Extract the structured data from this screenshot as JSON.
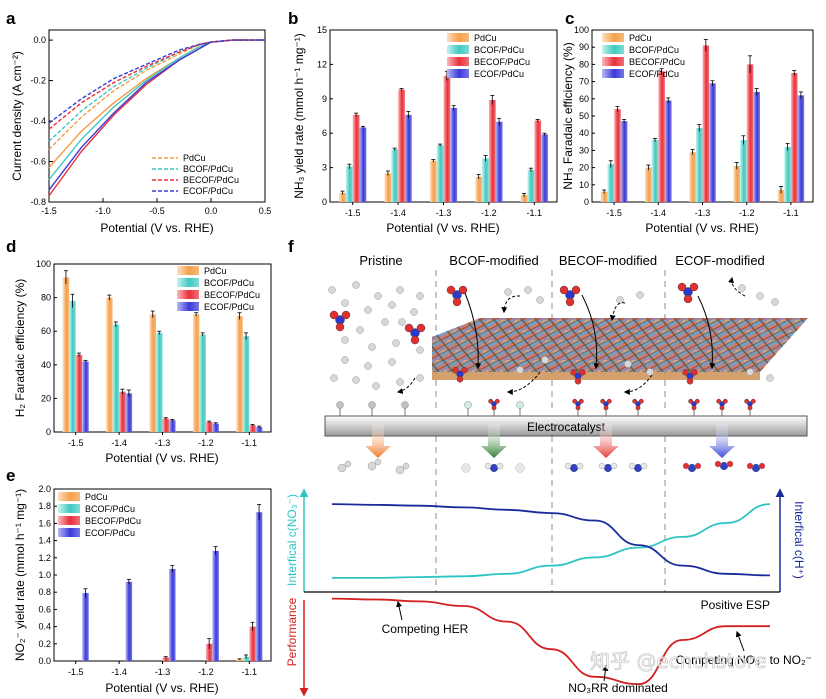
{
  "panels": {
    "a": {
      "letter": "a",
      "xlabel": "Potential (V vs. RHE)",
      "ylabel": "Current density (A cm⁻²)",
      "xticks": [
        "-1.5",
        "-1.0",
        "-0.5",
        "0.0",
        "0.5"
      ],
      "yticks": [
        "0.0",
        "-0.2",
        "-0.4",
        "-0.6",
        "-0.8"
      ],
      "legend": [
        "PdCu",
        "BCOF/PdCu",
        "BECOF/PdCu",
        "ECOF/PdCu"
      ]
    },
    "b": {
      "letter": "b",
      "xlabel": "Potential (V vs. RHE)",
      "ylabel": "NH₃ yield rate (mmol h⁻¹ mg⁻¹)",
      "yticks": [
        "0",
        "3",
        "6",
        "9",
        "12",
        "15"
      ]
    },
    "c": {
      "letter": "c",
      "xlabel": "Potential (V vs. RHE)",
      "ylabel": "NH₃ Faradaic efficiency (%)",
      "yticks": [
        "0",
        "10",
        "20",
        "30",
        "40",
        "50",
        "60",
        "70",
        "80",
        "90",
        "100"
      ]
    },
    "d": {
      "letter": "d",
      "xlabel": "Potential (V vs. RHE)",
      "ylabel": "H₂ Faradaic efficiency (%)",
      "yticks": [
        "0",
        "20",
        "40",
        "60",
        "80",
        "100"
      ]
    },
    "e": {
      "letter": "e",
      "xlabel": "Potential (V vs. RHE)",
      "ylabel": "NO₂⁻ yield rate (mmol h⁻¹ mg⁻¹)",
      "yticks": [
        "0.0",
        "0.2",
        "0.4",
        "0.6",
        "0.8",
        "1.0",
        "1.2",
        "1.4",
        "1.6",
        "1.8",
        "2.0"
      ]
    },
    "f": {
      "letter": "f",
      "columns": [
        "Pristine",
        "BCOF-modified",
        "BECOF-modified",
        "ECOF-modified"
      ],
      "electrocatalyst": "Electrocatalyst",
      "ylabel_left_top": "Interfical c(NO₃⁻)",
      "ylabel_right_top": "Interfical c(H⁺)",
      "ylabel_left_bottom": "Performance",
      "positive_esp": "Positive ESP",
      "competing_her": "Competing HER",
      "no3rr_dominated": "NO₃RR dominated",
      "competing_no2": "Competing NO₃⁻ to NO₂⁻",
      "watermark": "知乎 @ecnchstore"
    }
  },
  "colors": {
    "PdCu": "#f39a4a",
    "BCOF": "#3fc9c0",
    "BECOF": "#e8303a",
    "ECOF": "#3a3ad8",
    "c_no3": "#2ec4c4",
    "c_h": "#1a2a9a",
    "performance": "#d42020"
  },
  "chart_data": [
    {
      "panel": "a",
      "type": "line",
      "xlabel": "Potential (V vs. RHE)",
      "ylabel": "Current density (A cm⁻²)",
      "xlim": [
        -1.5,
        0.5
      ],
      "ylim": [
        -0.8,
        0.05
      ],
      "series": [
        {
          "name": "PdCu",
          "style": "solid",
          "x": [
            -1.5,
            -1.2,
            -0.9,
            -0.6,
            -0.3,
            -0.1,
            0.0,
            0.2,
            0.5
          ],
          "y": [
            -0.63,
            -0.45,
            -0.31,
            -0.19,
            -0.09,
            -0.03,
            -0.01,
            0.0,
            0.0
          ]
        },
        {
          "name": "BCOF/PdCu",
          "style": "solid",
          "x": [
            -1.5,
            -1.2,
            -0.9,
            -0.6,
            -0.3,
            -0.1,
            0.0,
            0.2,
            0.5
          ],
          "y": [
            -0.69,
            -0.49,
            -0.33,
            -0.2,
            -0.09,
            -0.03,
            -0.01,
            0.0,
            0.0
          ]
        },
        {
          "name": "BECOF/PdCu",
          "style": "solid",
          "x": [
            -1.5,
            -1.2,
            -0.9,
            -0.6,
            -0.3,
            -0.1,
            0.0,
            0.2,
            0.5
          ],
          "y": [
            -0.77,
            -0.55,
            -0.37,
            -0.22,
            -0.1,
            -0.04,
            -0.01,
            0.0,
            0.0
          ]
        },
        {
          "name": "ECOF/PdCu",
          "style": "solid",
          "x": [
            -1.5,
            -1.2,
            -0.9,
            -0.6,
            -0.3,
            -0.1,
            0.0,
            0.2,
            0.5
          ],
          "y": [
            -0.74,
            -0.53,
            -0.36,
            -0.21,
            -0.1,
            -0.04,
            -0.01,
            0.0,
            0.0
          ]
        },
        {
          "name": "PdCu",
          "style": "dash",
          "x": [
            -1.5,
            -1.2,
            -0.9,
            -0.6,
            -0.3,
            -0.1,
            0.0,
            0.2,
            0.5
          ],
          "y": [
            -0.54,
            -0.38,
            -0.25,
            -0.15,
            -0.07,
            -0.02,
            -0.01,
            0.0,
            0.0
          ]
        },
        {
          "name": "BCOF/PdCu",
          "style": "dash",
          "x": [
            -1.5,
            -1.2,
            -0.9,
            -0.6,
            -0.3,
            -0.1,
            0.0,
            0.2,
            0.5
          ],
          "y": [
            -0.5,
            -0.35,
            -0.23,
            -0.14,
            -0.06,
            -0.02,
            -0.01,
            0.0,
            0.0
          ]
        },
        {
          "name": "BECOF/PdCu",
          "style": "dash",
          "x": [
            -1.5,
            -1.2,
            -0.9,
            -0.6,
            -0.3,
            -0.1,
            0.0,
            0.2,
            0.5
          ],
          "y": [
            -0.44,
            -0.31,
            -0.21,
            -0.13,
            -0.06,
            -0.02,
            -0.01,
            0.0,
            0.0
          ]
        },
        {
          "name": "ECOF/PdCu",
          "style": "dash",
          "x": [
            -1.5,
            -1.2,
            -0.9,
            -0.6,
            -0.3,
            -0.1,
            0.0,
            0.2,
            0.5
          ],
          "y": [
            -0.41,
            -0.29,
            -0.19,
            -0.12,
            -0.05,
            -0.02,
            -0.01,
            0.0,
            0.0
          ]
        }
      ]
    },
    {
      "panel": "b",
      "type": "bar",
      "xlabel": "Potential (V vs. RHE)",
      "ylabel": "NH₃ yield rate (mmol h⁻¹ mg⁻¹)",
      "categories": [
        "-1.5",
        "-1.4",
        "-1.3",
        "-1.2",
        "-1.1"
      ],
      "ylim": [
        0,
        15
      ],
      "series": [
        {
          "name": "PdCu",
          "values": [
            0.8,
            2.5,
            3.6,
            2.2,
            0.6
          ],
          "errors": [
            0.15,
            0.2,
            0.1,
            0.2,
            0.15
          ]
        },
        {
          "name": "BCOF/PdCu",
          "values": [
            3.1,
            4.6,
            4.95,
            3.8,
            2.8
          ],
          "errors": [
            0.2,
            0.1,
            0.1,
            0.25,
            0.15
          ]
        },
        {
          "name": "BECOF/PdCu",
          "values": [
            7.6,
            9.8,
            11.0,
            8.9,
            7.1
          ],
          "errors": [
            0.15,
            0.1,
            0.4,
            0.4,
            0.1
          ]
        },
        {
          "name": "ECOF/PdCu",
          "values": [
            6.5,
            7.6,
            8.2,
            7.0,
            5.9
          ],
          "errors": [
            0.1,
            0.3,
            0.2,
            0.3,
            0.1
          ]
        }
      ]
    },
    {
      "panel": "c",
      "type": "bar",
      "xlabel": "Potential (V vs. RHE)",
      "ylabel": "NH₃ Faradaic efficiency (%)",
      "categories": [
        "-1.5",
        "-1.4",
        "-1.3",
        "-1.2",
        "-1.1"
      ],
      "ylim": [
        0,
        100
      ],
      "series": [
        {
          "name": "PdCu",
          "values": [
            6,
            20,
            29,
            21,
            7
          ],
          "errors": [
            1,
            1.5,
            1.5,
            2,
            2
          ]
        },
        {
          "name": "BCOF/PdCu",
          "values": [
            22,
            36,
            43,
            36,
            32
          ],
          "errors": [
            2,
            1,
            2,
            2.5,
            2
          ]
        },
        {
          "name": "BECOF/PdCu",
          "values": [
            54,
            76,
            91,
            80,
            75
          ],
          "errors": [
            1.5,
            1.5,
            3.5,
            5,
            1.5
          ]
        },
        {
          "name": "ECOF/PdCu",
          "values": [
            47,
            59,
            69,
            64,
            62
          ],
          "errors": [
            1,
            1.5,
            1.5,
            2,
            2
          ]
        }
      ]
    },
    {
      "panel": "d",
      "type": "bar",
      "xlabel": "Potential (V vs. RHE)",
      "ylabel": "H₂ Faradaic efficiency (%)",
      "categories": [
        "-1.5",
        "-1.4",
        "-1.3",
        "-1.2",
        "-1.1"
      ],
      "ylim": [
        0,
        100
      ],
      "series": [
        {
          "name": "PdCu",
          "values": [
            92,
            80,
            70,
            70,
            69
          ],
          "errors": [
            4,
            1.5,
            2,
            1,
            2
          ]
        },
        {
          "name": "BCOF/PdCu",
          "values": [
            78,
            64,
            59,
            58,
            57
          ],
          "errors": [
            4,
            1.5,
            1,
            1,
            2
          ]
        },
        {
          "name": "BECOF/PdCu",
          "values": [
            46,
            24,
            8,
            6,
            4
          ],
          "errors": [
            1,
            1.5,
            0.5,
            0.5,
            0.5
          ]
        },
        {
          "name": "ECOF/PdCu",
          "values": [
            42,
            23,
            7,
            5,
            3
          ],
          "errors": [
            0.5,
            2,
            0.5,
            0.5,
            0.5
          ]
        }
      ]
    },
    {
      "panel": "e",
      "type": "bar",
      "xlabel": "Potential (V vs. RHE)",
      "ylabel": "NO₂⁻ yield rate (mmol h⁻¹ mg⁻¹)",
      "categories": [
        "-1.5",
        "-1.4",
        "-1.3",
        "-1.2",
        "-1.1"
      ],
      "ylim": [
        0,
        2.0
      ],
      "series": [
        {
          "name": "PdCu",
          "values": [
            0,
            0,
            0,
            0,
            0.02
          ],
          "errors": [
            0,
            0,
            0,
            0,
            0.005
          ]
        },
        {
          "name": "BCOF/PdCu",
          "values": [
            0,
            0,
            0,
            0,
            0.05
          ],
          "errors": [
            0,
            0,
            0,
            0,
            0.02
          ]
        },
        {
          "name": "BECOF/PdCu",
          "values": [
            0,
            0,
            0.04,
            0.2,
            0.4
          ],
          "errors": [
            0,
            0,
            0.01,
            0.06,
            0.05
          ]
        },
        {
          "name": "ECOF/PdCu",
          "values": [
            0.79,
            0.92,
            1.07,
            1.28,
            1.73
          ],
          "errors": [
            0.05,
            0.03,
            0.04,
            0.05,
            0.09
          ]
        }
      ]
    },
    {
      "panel": "f",
      "type": "line",
      "ylabel": "Interfical c(NO₃⁻)",
      "series": [
        {
          "name": "Interfical c(NO₃⁻)",
          "x": [
            0,
            1,
            2,
            3,
            4,
            5,
            6,
            7,
            8,
            9,
            10
          ],
          "y": [
            0.05,
            0.05,
            0.06,
            0.07,
            0.1,
            0.2,
            0.3,
            0.42,
            0.55,
            0.72,
            0.95
          ]
        },
        {
          "name": "Interfical c(H⁺)",
          "x": [
            0,
            1,
            2,
            3,
            4,
            5,
            6,
            7,
            8,
            9,
            10
          ],
          "y": [
            0.95,
            0.94,
            0.93,
            0.91,
            0.88,
            0.84,
            0.75,
            0.45,
            0.2,
            0.1,
            0.08
          ]
        },
        {
          "name": "Performance",
          "x": [
            0,
            1,
            2,
            3,
            4,
            5,
            6,
            7,
            8,
            9,
            10
          ],
          "y": [
            0.95,
            0.94,
            0.92,
            0.87,
            0.7,
            0.4,
            0.1,
            0.02,
            0.5,
            0.65,
            0.65
          ]
        }
      ]
    }
  ]
}
